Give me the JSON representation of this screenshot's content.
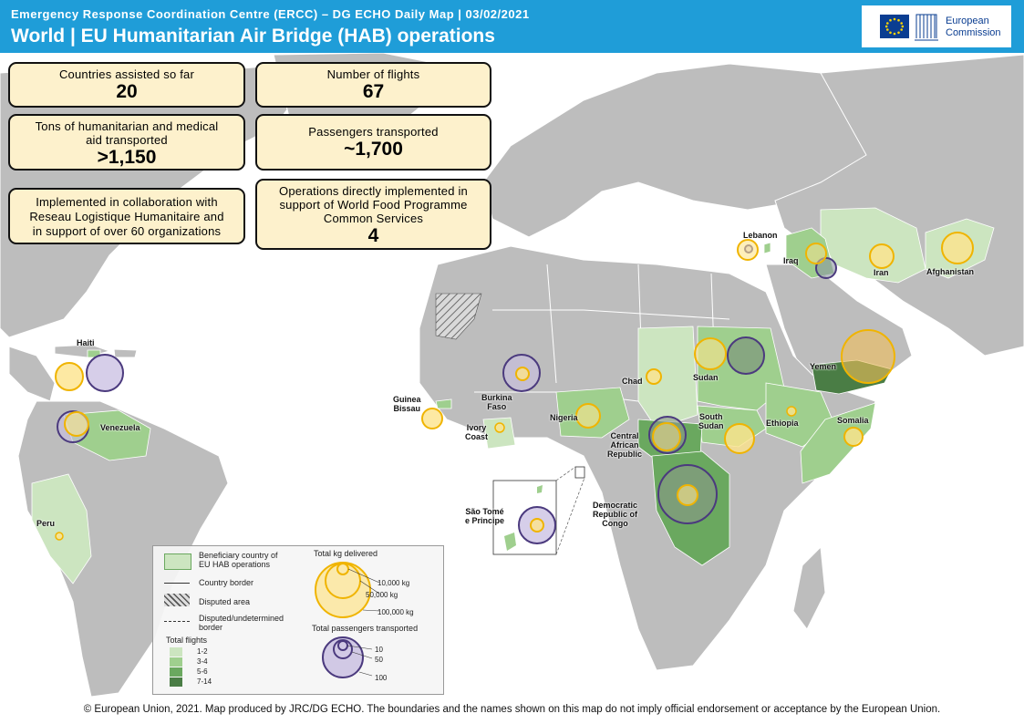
{
  "header": {
    "subtitle": "Emergency Response Coordination Centre (ERCC) – DG ECHO Daily Map | 03/02/2021",
    "title": "World | EU Humanitarian Air Bridge (HAB) operations",
    "logo_text_1": "European",
    "logo_text_2": "Commission",
    "bg_color": "#1f9dd8"
  },
  "stats": {
    "countries": {
      "label": "Countries assisted so far",
      "value": "20"
    },
    "flights": {
      "label": "Number of flights",
      "value": "67"
    },
    "tons": {
      "label_1": "Tons of humanitarian and medical",
      "label_2": "aid transported",
      "value": ">1,150"
    },
    "passengers": {
      "label": "Passengers transported",
      "value": "~1,700"
    },
    "collab": {
      "line_1": "Implemented in collaboration with",
      "line_2": "Reseau Logistique Humanitaire and",
      "line_3": "in support of over 60 organizations"
    },
    "wfp": {
      "line_1": "Operations directly implemented in",
      "line_2": "support of World Food Programme",
      "line_3": "Common Services",
      "value": "4"
    }
  },
  "countries": {
    "lebanon": "Lebanon",
    "iraq": "Iraq",
    "iran": "Iran",
    "afghanistan": "Afghanistan",
    "haiti": "Haiti",
    "yemen": "Yemen",
    "chad": "Chad",
    "sudan": "Sudan",
    "guinea_bissau_1": "Guinea",
    "guinea_bissau_2": "Bissau",
    "burkina_1": "Burkina",
    "burkina_2": "Faso",
    "nigeria": "Nigeria",
    "south_sudan_1": "South",
    "south_sudan_2": "Sudan",
    "ethiopia": "Ethiopia",
    "somalia": "Somalia",
    "venezuela": "Venezuela",
    "ivory_1": "Ivory",
    "ivory_2": "Coast",
    "car_1": "Central",
    "car_2": "African",
    "car_3": "Republic",
    "sao_tome_1": "São Tomé",
    "sao_tome_2": "e Principe",
    "drc_1": "Democratic",
    "drc_2": "Republic of",
    "drc_3": "Congo",
    "peru": "Peru"
  },
  "legend": {
    "beneficiary_1": "Beneficiary country of",
    "beneficiary_2": "EU HAB operations",
    "border": "Country border",
    "disputed": "Disputed area",
    "undetermined_1": "Disputed/undetermined",
    "undetermined_2": "border",
    "total_flights": "Total flights",
    "classes": [
      "1-2",
      "3-4",
      "5-6",
      "7-14"
    ],
    "class_colors": [
      "#cce5c0",
      "#9fcf8e",
      "#6aa85f",
      "#4a7d45"
    ],
    "kg_title": "Total kg delivered",
    "kg_small": "10,000 kg",
    "kg_mid": "50,000 kg",
    "kg_large": "100,000 kg",
    "pax_title": "Total passengers transported",
    "pax_small": "10",
    "pax_mid": "50",
    "pax_large": "100",
    "kg_color": "#f0b400",
    "pax_color": "#4b3a7e"
  },
  "footer": "© European Union, 2021. Map produced by JRC/DG ECHO. The boundaries and the names shown on this map do not imply official endorsement or acceptance by the European Union."
}
